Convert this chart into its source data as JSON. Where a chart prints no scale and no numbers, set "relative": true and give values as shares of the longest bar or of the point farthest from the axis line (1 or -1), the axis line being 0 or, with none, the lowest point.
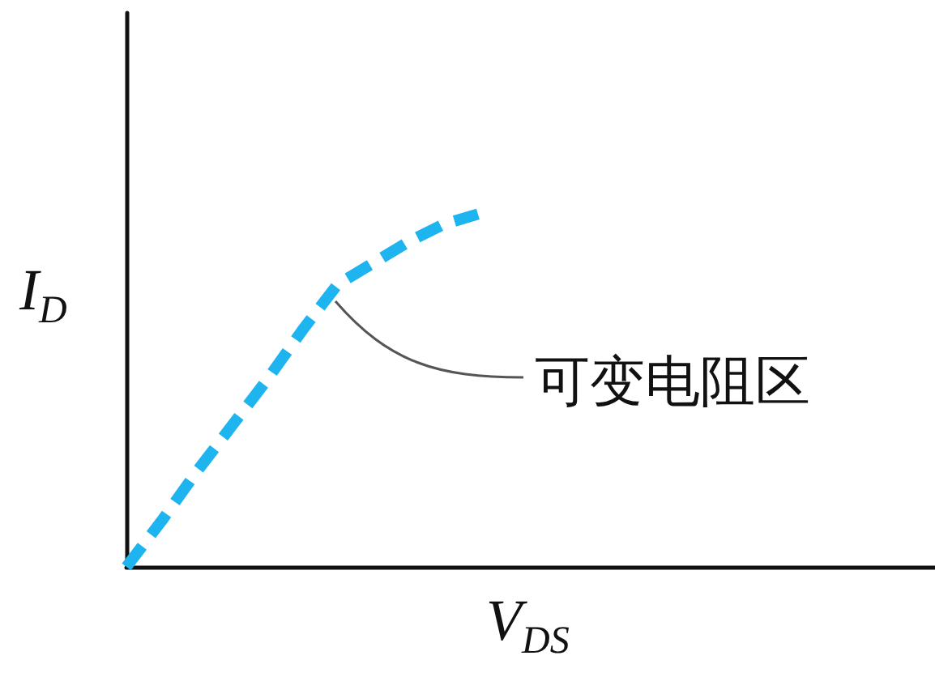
{
  "chart_data": {
    "type": "line",
    "xlabel": "V$_{DS}$",
    "ylabel": "I$_{D}$",
    "relative": true,
    "tick_labels": false,
    "grid": false,
    "marker": "none",
    "line_style": "dashed",
    "annotations": [
      "可变电阻区"
    ],
    "categories": [
      null,
      null,
      null,
      null,
      null,
      null,
      null,
      null,
      null,
      null,
      null,
      null,
      null,
      null,
      null,
      null,
      null,
      null,
      null,
      null,
      null,
      null,
      null,
      null
    ],
    "series": [
      {
        "color": "#1eb4f0",
        "values": [
          0,
          0.13,
          0.27,
          0.4,
          0.53,
          0.67,
          0.8,
          0.86,
          0.92,
          0.97,
          1,
          null,
          null,
          null,
          null,
          null,
          null,
          null,
          null,
          null,
          null,
          null,
          null,
          null
        ]
      }
    ]
  }
}
